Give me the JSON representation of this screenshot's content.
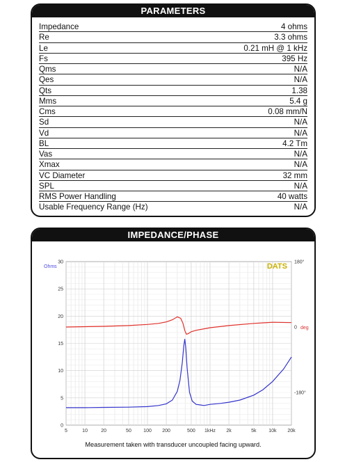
{
  "parameters": {
    "header": "PARAMETERS",
    "rows": [
      {
        "name": "Impedance",
        "value": "4 ohms"
      },
      {
        "name": "Re",
        "value": "3.3 ohms"
      },
      {
        "name": "Le",
        "value": "0.21 mH @ 1 kHz"
      },
      {
        "name": "Fs",
        "value": "395 Hz"
      },
      {
        "name": "Qms",
        "value": "N/A"
      },
      {
        "name": "Qes",
        "value": "N/A"
      },
      {
        "name": "Qts",
        "value": "1.38"
      },
      {
        "name": "Mms",
        "value": "5.4 g"
      },
      {
        "name": "Cms",
        "value": "0.08 mm/N"
      },
      {
        "name": "Sd",
        "value": "N/A"
      },
      {
        "name": "Vd",
        "value": "N/A"
      },
      {
        "name": "BL",
        "value": "4.2 Tm"
      },
      {
        "name": "Vas",
        "value": "N/A"
      },
      {
        "name": "Xmax",
        "value": "N/A"
      },
      {
        "name": "VC Diameter",
        "value": "32 mm"
      },
      {
        "name": "SPL",
        "value": "N/A"
      },
      {
        "name": "RMS Power Handling",
        "value": "40 watts"
      },
      {
        "name": "Usable Frequency Range (Hz)",
        "value": "N/A"
      }
    ]
  },
  "impedance_panel": {
    "header": "IMPEDANCE/PHASE",
    "caption": "Measurement taken with transducer uncoupled facing upward.",
    "brand": "DATS"
  },
  "colors": {
    "impedance": "#3333cc",
    "phase": "#e0302a",
    "ohms_label": "#4a4adc",
    "deg_label": "#d83030",
    "brand": "#c9b100"
  },
  "chart_data": {
    "type": "line",
    "xscale": "log",
    "xlim": [
      5,
      20000
    ],
    "x_ticks": [
      5,
      10,
      20,
      50,
      100,
      200,
      500,
      1000,
      2000,
      5000,
      10000,
      20000
    ],
    "x_tick_labels": [
      "5",
      "10",
      "20",
      "50",
      "100",
      "200",
      "500",
      "1kHz",
      "2k",
      "5k",
      "10k",
      "20k"
    ],
    "y_left": {
      "label": "Ohms",
      "lim": [
        0,
        30
      ],
      "ticks": [
        0,
        5,
        10,
        15,
        20,
        25,
        30
      ],
      "tick_labels": [
        "0",
        "5",
        "10",
        "15",
        "20",
        "25",
        "30"
      ]
    },
    "y_right": {
      "label": "deg",
      "lim": [
        -270,
        180
      ],
      "ticks": [
        180,
        0,
        -180
      ],
      "tick_labels": [
        "180°",
        "0",
        "-180°"
      ]
    },
    "grid": true,
    "series": [
      {
        "axis": "left",
        "x": [
          5,
          10,
          20,
          50,
          100,
          150,
          200,
          250,
          300,
          330,
          360,
          380,
          395,
          410,
          430,
          470,
          520,
          600,
          700,
          800,
          1000,
          1500,
          2000,
          3000,
          5000,
          7000,
          10000,
          15000,
          20000
        ],
        "y": [
          3.2,
          3.2,
          3.25,
          3.3,
          3.4,
          3.6,
          3.9,
          4.6,
          6.2,
          8.2,
          11.5,
          14.5,
          15.8,
          14.2,
          10.5,
          6.0,
          4.4,
          3.8,
          3.7,
          3.6,
          3.8,
          4.0,
          4.2,
          4.6,
          5.5,
          6.5,
          8.0,
          10.3,
          12.5
        ]
      },
      {
        "axis": "right",
        "x": [
          5,
          10,
          20,
          50,
          100,
          150,
          200,
          250,
          300,
          340,
          370,
          395,
          420,
          450,
          500,
          600,
          800,
          1000,
          2000,
          5000,
          10000,
          20000
        ],
        "y": [
          0,
          1,
          2,
          4,
          7,
          10,
          14,
          20,
          28,
          24,
          10,
          -10,
          -20,
          -18,
          -13,
          -9,
          -5,
          -2,
          4,
          10,
          13,
          12
        ]
      }
    ]
  }
}
